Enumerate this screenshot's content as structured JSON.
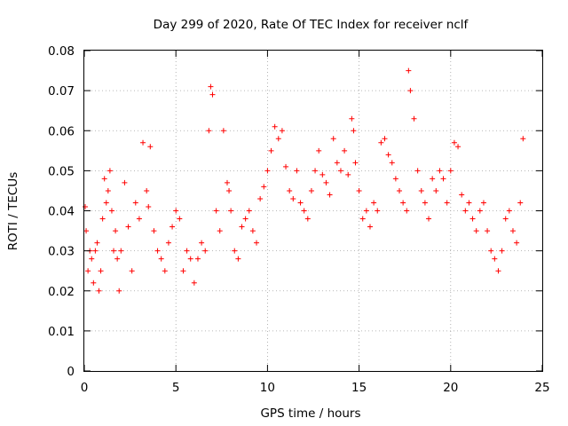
{
  "chart_data": {
    "type": "scatter",
    "title": "Day 299 of 2020, Rate Of TEC Index for receiver nclf",
    "xlabel": "GPS time / hours",
    "ylabel": "ROTI / TECUs",
    "xlim": [
      0,
      25
    ],
    "ylim": [
      0,
      0.08
    ],
    "x_ticks": [
      0,
      5,
      10,
      15,
      20,
      25
    ],
    "y_ticks": [
      0,
      0.01,
      0.02,
      0.03,
      0.04,
      0.05,
      0.06,
      0.07,
      0.08
    ],
    "x_tick_labels": [
      "0",
      "5",
      "10",
      "15",
      "20",
      "25"
    ],
    "y_tick_labels": [
      "0",
      "0.01",
      "0.02",
      "0.03",
      "0.04",
      "0.05",
      "0.06",
      "0.07",
      "0.08"
    ],
    "grid": true,
    "marker": "+",
    "series_color": "#ff0000",
    "series": [
      {
        "x": [
          0.05,
          0.1,
          0.2,
          0.3,
          0.4,
          0.5,
          0.6,
          0.7,
          0.8,
          0.9,
          1.0,
          1.1,
          1.2,
          1.3,
          1.4,
          1.5,
          1.6,
          1.7,
          1.8,
          1.9,
          2.0,
          2.2,
          2.4,
          2.6,
          2.8,
          3.0,
          3.2,
          3.4,
          3.5,
          3.6,
          3.8,
          4.0,
          4.2,
          4.4,
          4.6,
          4.8,
          5.0,
          5.2,
          5.4,
          5.6,
          5.8,
          6.0,
          6.2,
          6.4,
          6.6,
          6.8,
          6.9,
          7.0,
          7.2,
          7.4,
          7.6,
          7.8,
          7.9,
          8.0,
          8.2,
          8.4,
          8.6,
          8.8,
          9.0,
          9.2,
          9.4,
          9.6,
          9.8,
          10.0,
          10.2,
          10.4,
          10.6,
          10.8,
          11.0,
          11.2,
          11.4,
          11.6,
          11.8,
          12.0,
          12.2,
          12.4,
          12.6,
          12.8,
          13.0,
          13.2,
          13.4,
          13.6,
          13.8,
          14.0,
          14.2,
          14.4,
          14.6,
          14.7,
          14.8,
          15.0,
          15.2,
          15.4,
          15.6,
          15.8,
          16.0,
          16.2,
          16.4,
          16.6,
          16.8,
          17.0,
          17.2,
          17.4,
          17.6,
          17.7,
          17.8,
          18.0,
          18.2,
          18.4,
          18.6,
          18.8,
          19.0,
          19.2,
          19.4,
          19.6,
          19.8,
          20.0,
          20.2,
          20.4,
          20.6,
          20.8,
          21.0,
          21.2,
          21.4,
          21.6,
          21.8,
          22.0,
          22.2,
          22.4,
          22.6,
          22.8,
          23.0,
          23.2,
          23.4,
          23.6,
          23.8,
          23.95
        ],
        "y": [
          0.041,
          0.035,
          0.025,
          0.03,
          0.028,
          0.022,
          0.03,
          0.032,
          0.02,
          0.025,
          0.038,
          0.048,
          0.042,
          0.045,
          0.05,
          0.04,
          0.03,
          0.035,
          0.028,
          0.02,
          0.03,
          0.047,
          0.036,
          0.025,
          0.042,
          0.038,
          0.057,
          0.045,
          0.041,
          0.056,
          0.035,
          0.03,
          0.028,
          0.025,
          0.032,
          0.036,
          0.04,
          0.038,
          0.025,
          0.03,
          0.028,
          0.022,
          0.028,
          0.032,
          0.03,
          0.06,
          0.071,
          0.069,
          0.04,
          0.035,
          0.06,
          0.047,
          0.045,
          0.04,
          0.03,
          0.028,
          0.036,
          0.038,
          0.04,
          0.035,
          0.032,
          0.043,
          0.046,
          0.05,
          0.055,
          0.061,
          0.058,
          0.06,
          0.051,
          0.045,
          0.043,
          0.05,
          0.042,
          0.04,
          0.038,
          0.045,
          0.05,
          0.055,
          0.049,
          0.047,
          0.044,
          0.058,
          0.052,
          0.05,
          0.055,
          0.049,
          0.063,
          0.06,
          0.052,
          0.045,
          0.038,
          0.04,
          0.036,
          0.042,
          0.04,
          0.057,
          0.058,
          0.054,
          0.052,
          0.048,
          0.045,
          0.042,
          0.04,
          0.075,
          0.07,
          0.063,
          0.05,
          0.045,
          0.042,
          0.038,
          0.048,
          0.045,
          0.05,
          0.048,
          0.042,
          0.05,
          0.057,
          0.056,
          0.044,
          0.04,
          0.042,
          0.038,
          0.035,
          0.04,
          0.042,
          0.035,
          0.03,
          0.028,
          0.025,
          0.03,
          0.038,
          0.04,
          0.035,
          0.032,
          0.042,
          0.058
        ]
      }
    ]
  }
}
